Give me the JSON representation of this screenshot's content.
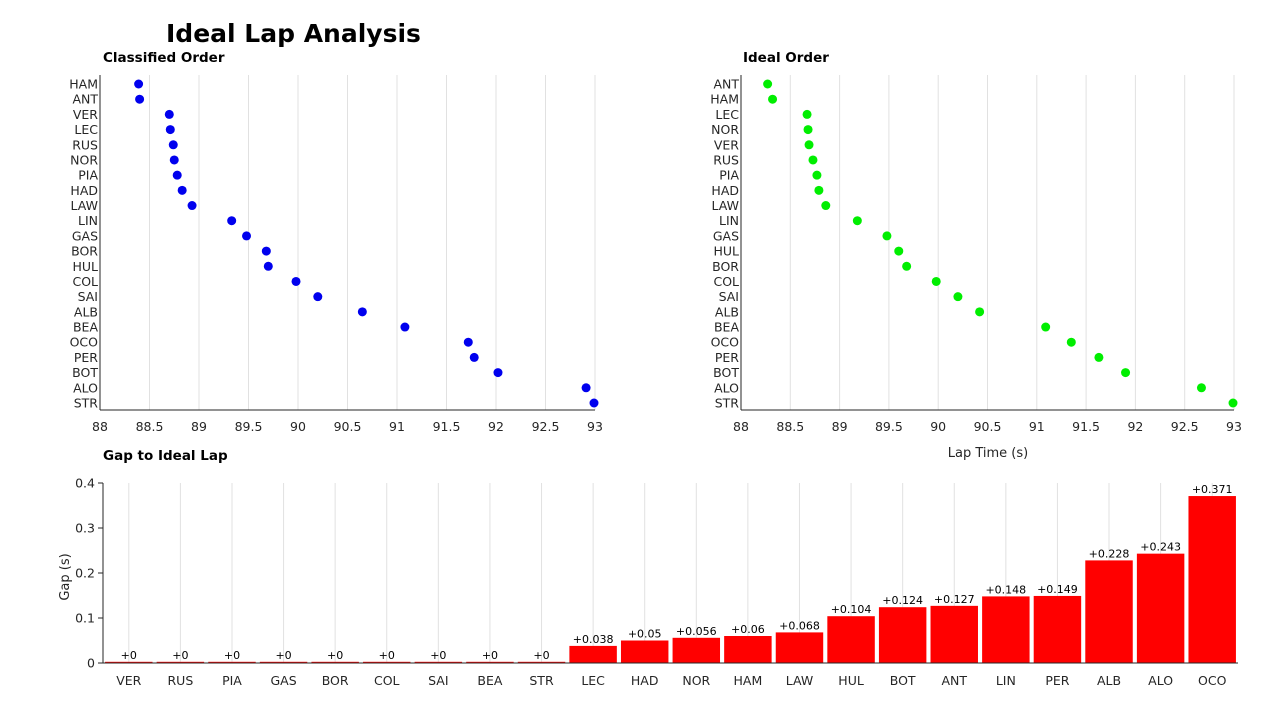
{
  "title": "Ideal Lap Analysis",
  "colors": {
    "classified": "#0000ee",
    "ideal": "#00ee00",
    "gap": "#ff0000"
  },
  "chart_data": [
    {
      "id": "classified",
      "type": "scatter",
      "title": "Classified Order",
      "xlabel": "",
      "ylabel": "",
      "xlim": [
        88,
        93
      ],
      "xticks": [
        "88",
        "88.5",
        "89",
        "89.5",
        "90",
        "90.5",
        "91",
        "91.5",
        "92",
        "92.5",
        "93"
      ],
      "grid": "vertical",
      "color": "#0000ee",
      "categories": [
        "HAM",
        "ANT",
        "VER",
        "LEC",
        "RUS",
        "NOR",
        "PIA",
        "HAD",
        "LAW",
        "LIN",
        "GAS",
        "BOR",
        "HUL",
        "COL",
        "SAI",
        "ALB",
        "BEA",
        "OCO",
        "PER",
        "BOT",
        "ALO",
        "STR"
      ],
      "values": [
        88.39,
        88.4,
        88.7,
        88.71,
        88.74,
        88.75,
        88.78,
        88.83,
        88.93,
        89.33,
        89.48,
        89.68,
        89.7,
        89.98,
        90.2,
        90.65,
        91.08,
        91.72,
        91.78,
        92.02,
        92.91,
        92.99
      ]
    },
    {
      "id": "ideal",
      "type": "scatter",
      "title": "Ideal Order",
      "xlabel": "Lap Time (s)",
      "ylabel": "",
      "xlim": [
        88,
        93
      ],
      "xticks": [
        "88",
        "88.5",
        "89",
        "89.5",
        "90",
        "90.5",
        "91",
        "91.5",
        "92",
        "92.5",
        "93"
      ],
      "grid": "vertical",
      "color": "#00ee00",
      "categories": [
        "ANT",
        "HAM",
        "LEC",
        "NOR",
        "VER",
        "RUS",
        "PIA",
        "HAD",
        "LAW",
        "LIN",
        "GAS",
        "HUL",
        "BOR",
        "COL",
        "SAI",
        "ALB",
        "BEA",
        "OCO",
        "PER",
        "BOT",
        "ALO",
        "STR"
      ],
      "values": [
        88.27,
        88.32,
        88.67,
        88.68,
        88.69,
        88.73,
        88.77,
        88.79,
        88.86,
        89.18,
        89.48,
        89.6,
        89.68,
        89.98,
        90.2,
        90.42,
        91.09,
        91.35,
        91.63,
        91.9,
        92.67,
        92.99
      ]
    },
    {
      "id": "gap",
      "type": "bar",
      "title": "Gap to Ideal Lap",
      "xlabel": "",
      "ylabel": "Gap (s)",
      "ylim": [
        0,
        0.4
      ],
      "yticks": [
        "0",
        "0.1",
        "0.2",
        "0.3",
        "0.4"
      ],
      "grid": "vertical",
      "color": "#ff0000",
      "categories": [
        "VER",
        "RUS",
        "PIA",
        "GAS",
        "BOR",
        "COL",
        "SAI",
        "BEA",
        "STR",
        "LEC",
        "HAD",
        "NOR",
        "HAM",
        "LAW",
        "HUL",
        "BOT",
        "ANT",
        "LIN",
        "PER",
        "ALB",
        "ALO",
        "OCO"
      ],
      "values": [
        0,
        0,
        0,
        0,
        0,
        0,
        0,
        0,
        0,
        0.038,
        0.05,
        0.056,
        0.06,
        0.068,
        0.104,
        0.124,
        0.127,
        0.148,
        0.149,
        0.228,
        0.243,
        0.371
      ],
      "labels": [
        "+0",
        "+0",
        "+0",
        "+0",
        "+0",
        "+0",
        "+0",
        "+0",
        "+0",
        "+0.038",
        "+0.05",
        "+0.056",
        "+0.06",
        "+0.068",
        "+0.104",
        "+0.124",
        "+0.127",
        "+0.148",
        "+0.149",
        "+0.228",
        "+0.243",
        "+0.371"
      ]
    }
  ]
}
